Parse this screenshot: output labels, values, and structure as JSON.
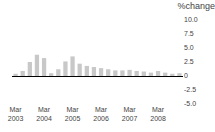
{
  "chart_data": {
    "type": "bar",
    "title": "%change",
    "categories": [
      "Mar\n2003",
      null,
      null,
      null,
      "Mar\n2004",
      null,
      null,
      null,
      "Mar\n2005",
      null,
      null,
      null,
      "Mar\n2006",
      null,
      null,
      null,
      "Mar\n2007",
      null,
      null,
      null,
      "Mar\n2008",
      null,
      null,
      null
    ],
    "values": [
      0.4,
      0.9,
      2.5,
      3.8,
      3.2,
      0.5,
      1.2,
      2.6,
      3.5,
      2.2,
      1.8,
      1.6,
      1.4,
      1.2,
      1.0,
      1.0,
      1.1,
      0.9,
      0.8,
      0.6,
      0.9,
      0.6,
      0.4,
      0.5
    ],
    "color": "#c8c8c8",
    "ylim": [
      -5.0,
      10.0
    ],
    "yticks": [
      {
        "value": -5.0,
        "label": "-5.0"
      },
      -2.5,
      0,
      2.5,
      {
        "value": 5.0,
        "label": "5.0"
      },
      7.5,
      {
        "value": 10.0,
        "label": "10.0"
      }
    ],
    "grid": false
  }
}
